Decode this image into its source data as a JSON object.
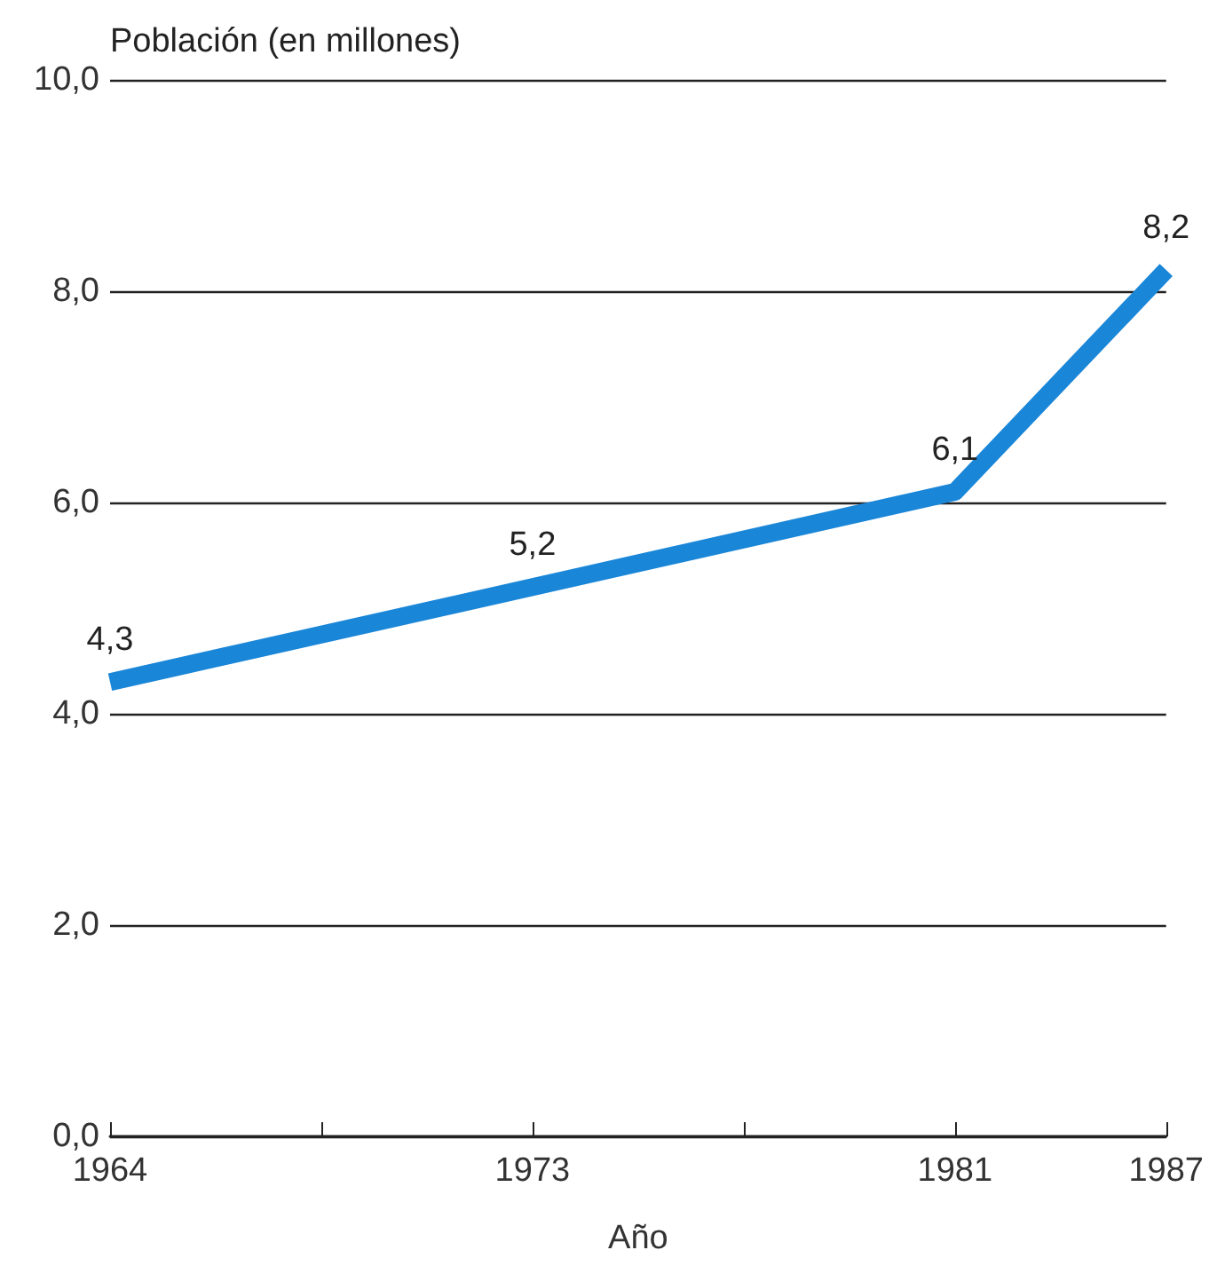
{
  "chart_data": {
    "type": "line",
    "ylabel": "Población (en millones)",
    "xlabel": "Año",
    "categories": [
      "1964",
      null,
      "1973",
      null,
      "1981",
      "1987"
    ],
    "series": [
      {
        "color": "#1a86d8",
        "values": [
          4.3,
          null,
          5.2,
          null,
          6.1,
          8.2
        ],
        "value_labels": [
          "4,3",
          null,
          "5,2",
          null,
          "6,1",
          "8,2"
        ]
      }
    ],
    "ylim": [
      0,
      10
    ],
    "yticks": [
      {
        "value": 0,
        "label": "0,0"
      },
      {
        "value": 2,
        "label": "2,0"
      },
      {
        "value": 4,
        "label": "4,0"
      },
      {
        "value": 6,
        "label": "6,0"
      },
      {
        "value": 8,
        "label": "8,0"
      },
      {
        "value": 10,
        "label": "10,0"
      }
    ],
    "grid": "y",
    "marker": "none",
    "line_style": "solid"
  }
}
